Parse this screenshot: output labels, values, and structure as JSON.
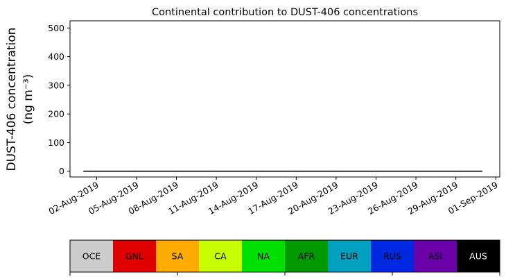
{
  "chart_data": {
    "type": "area",
    "title": "Continental contribution to DUST-406 concentrations",
    "ylabel_line1": "DUST-406 concentration",
    "ylabel_line2": "(ng m⁻³)",
    "xlabel": "",
    "ylim": [
      -20,
      525
    ],
    "y_ticks": [
      0,
      100,
      200,
      300,
      400,
      500
    ],
    "x_start": "2019-08-01",
    "x_tick_days": [
      1,
      4,
      7,
      10,
      13,
      16,
      19,
      22,
      25,
      28,
      31
    ],
    "x_tick_labels": [
      "02-Aug-2019",
      "05-Aug-2019",
      "08-Aug-2019",
      "11-Aug-2019",
      "14-Aug-2019",
      "17-Aug-2019",
      "20-Aug-2019",
      "23-Aug-2019",
      "26-Aug-2019",
      "29-Aug-2019",
      "01-Sep-2019"
    ],
    "categories": [
      "OCE",
      "GNL",
      "SA",
      "CA",
      "NA",
      "AFR",
      "EUR",
      "RUS",
      "ASI",
      "AUS"
    ],
    "colors": [
      "#cccccc",
      "#e00000",
      "#ffab00",
      "#c8ff00",
      "#00e000",
      "#009a00",
      "#00a0c0",
      "#0028e0",
      "#6c00a8",
      "#000000"
    ],
    "legend_text_colors": [
      "#000000",
      "#000000",
      "#000000",
      "#000000",
      "#000000",
      "#000000",
      "#000000",
      "#000000",
      "#000000",
      "#ffffff"
    ],
    "x": [
      0,
      0.5,
      1,
      1.5,
      2,
      2.5,
      3,
      3.5,
      4,
      4.5,
      5,
      5.5,
      6,
      6.5,
      7,
      7.5,
      8,
      8.5,
      9,
      9.5,
      10,
      10.5,
      11,
      11.5,
      12,
      12.5,
      13,
      13.5,
      14,
      14.5,
      15,
      15.5,
      16,
      16.5,
      17,
      17.5,
      18,
      18.5,
      19,
      19.5,
      20,
      20.5,
      21,
      21.5,
      22,
      22.5,
      23,
      23.5,
      24,
      24.5,
      25,
      25.5,
      26,
      26.5,
      27,
      27.5,
      28,
      28.5,
      29,
      29.5,
      30
    ],
    "series": [
      {
        "name": "OCE",
        "values": [
          0,
          0,
          0,
          0,
          0,
          0,
          0,
          0,
          0,
          0,
          0,
          0,
          0,
          0,
          0,
          0,
          0,
          0,
          0,
          0,
          0,
          0,
          0,
          0,
          0,
          0,
          0,
          0,
          0,
          0,
          0,
          0,
          0,
          0,
          0,
          0,
          0,
          0,
          0,
          0,
          0,
          0,
          0,
          0,
          0,
          0,
          0,
          0,
          0,
          0,
          0,
          0,
          0,
          0,
          0,
          0,
          0,
          0,
          0,
          0,
          0
        ]
      },
      {
        "name": "GNL",
        "values": [
          0,
          0,
          0,
          0,
          0,
          0,
          0,
          0,
          0,
          0,
          0,
          0,
          0,
          0,
          0,
          0,
          0,
          0,
          0,
          0,
          0,
          0,
          0,
          0,
          0,
          0,
          0,
          0,
          0,
          0,
          0,
          0,
          0,
          0,
          0,
          0,
          0,
          0,
          0,
          0,
          0,
          0,
          0,
          0,
          0,
          0,
          0,
          0,
          0,
          0,
          0,
          0,
          0,
          0,
          0,
          0,
          0,
          0,
          0,
          0,
          0
        ]
      },
      {
        "name": "SA",
        "values": [
          0,
          0,
          0,
          0,
          0,
          0,
          0,
          0,
          0,
          0,
          0,
          0,
          0,
          0,
          0,
          0,
          0,
          0,
          0,
          0,
          0,
          0,
          0,
          0,
          0,
          0,
          0,
          0,
          0,
          0,
          0,
          0,
          0,
          0,
          0,
          0,
          0,
          0,
          0,
          0,
          0,
          0,
          0,
          0,
          0,
          0,
          0,
          0,
          0,
          0,
          0,
          0,
          0,
          0,
          0,
          0,
          0,
          0,
          0,
          0,
          0
        ]
      },
      {
        "name": "CA",
        "values": [
          0,
          0,
          0,
          0,
          0,
          0,
          0,
          0,
          0,
          0,
          0,
          0,
          0,
          0,
          0,
          0,
          0,
          0,
          0,
          0,
          0,
          0,
          0,
          0,
          0,
          0,
          0,
          0,
          0,
          0,
          0,
          0,
          0,
          0,
          0,
          0,
          0,
          0,
          0,
          0,
          0,
          0,
          0,
          0,
          0,
          0,
          0,
          0,
          0,
          0,
          0,
          0,
          0,
          0,
          0,
          0,
          0,
          0,
          0,
          0,
          0
        ]
      },
      {
        "name": "NA",
        "values": [
          0,
          0,
          0,
          0,
          0,
          0,
          0,
          0,
          0,
          0,
          0,
          0,
          0,
          0,
          0,
          0,
          0,
          0,
          0,
          0,
          0,
          0,
          0,
          0,
          0,
          0,
          0,
          0,
          0,
          0,
          0,
          0,
          0,
          0,
          0,
          0,
          0,
          0,
          0,
          0,
          0,
          0,
          0,
          0,
          0,
          0,
          0,
          0,
          0,
          0,
          0,
          0,
          0,
          0,
          0,
          0,
          0,
          0,
          0,
          0,
          0
        ]
      },
      {
        "name": "AFR",
        "values": [
          0,
          0,
          0,
          0,
          0,
          0,
          0,
          0,
          0,
          0,
          0,
          0,
          0,
          0,
          0,
          0,
          0,
          0,
          0,
          0,
          0,
          0,
          0,
          0,
          0,
          0,
          0,
          0,
          0,
          0,
          0,
          0,
          0,
          0,
          0,
          0,
          0,
          0,
          0,
          0,
          0,
          0,
          0,
          0,
          0,
          0,
          0,
          0,
          0,
          0,
          0,
          0,
          0,
          0,
          0,
          0,
          0,
          0,
          0,
          0,
          0
        ]
      },
      {
        "name": "EUR",
        "values": [
          0,
          0,
          0,
          0,
          0,
          0,
          0,
          0,
          0,
          0,
          0,
          0,
          0,
          0,
          0,
          0,
          0,
          0,
          0,
          0,
          0,
          0,
          0,
          0,
          0,
          0,
          0,
          0,
          0,
          0,
          0,
          0,
          0,
          0,
          0,
          0,
          0,
          0,
          0,
          0,
          0,
          0,
          0,
          0,
          0,
          0,
          0,
          0,
          0,
          0,
          0,
          0,
          0,
          0,
          0,
          0,
          0,
          0,
          0,
          0,
          0
        ]
      },
      {
        "name": "RUS",
        "values": [
          0,
          0,
          0,
          0,
          0,
          0,
          0,
          0,
          0,
          0,
          0,
          0,
          0,
          0,
          0,
          0,
          0,
          0,
          0,
          0,
          0,
          0,
          0,
          0,
          0,
          0,
          0,
          0,
          0,
          0,
          0,
          0,
          0,
          0,
          0,
          0,
          0,
          0,
          0,
          0,
          0,
          0,
          0,
          0,
          0,
          0,
          0,
          0,
          0,
          0,
          0,
          0,
          0,
          0,
          0,
          0,
          0,
          0,
          0,
          0,
          0
        ]
      },
      {
        "name": "ASI",
        "values": [
          0,
          0,
          0,
          0,
          0,
          0,
          0,
          0,
          0,
          0,
          0,
          0,
          0,
          0,
          0,
          0,
          0,
          0,
          0,
          0,
          0,
          0,
          0,
          0,
          0,
          0,
          0,
          0,
          0,
          0,
          0,
          0,
          0,
          0,
          0,
          0,
          0,
          0,
          0,
          0,
          0,
          0,
          0,
          0,
          0,
          0,
          0,
          0,
          0,
          0,
          0,
          0,
          0,
          0,
          0,
          0,
          0,
          0,
          0,
          0,
          0
        ]
      },
      {
        "name": "AUS",
        "values": [
          0,
          0,
          0,
          0,
          0,
          0,
          0,
          0,
          0,
          0,
          0,
          0,
          0,
          0,
          0,
          0,
          0,
          0,
          0,
          0,
          0,
          0,
          0,
          0,
          0,
          0,
          0,
          0,
          0,
          0,
          0,
          0,
          0,
          0,
          0,
          0,
          0,
          0,
          0,
          0,
          0,
          0,
          0,
          0,
          0,
          0,
          0,
          0,
          0,
          0,
          0,
          0,
          0,
          0,
          0,
          0,
          0,
          0,
          0,
          0,
          0
        ]
      }
    ]
  }
}
